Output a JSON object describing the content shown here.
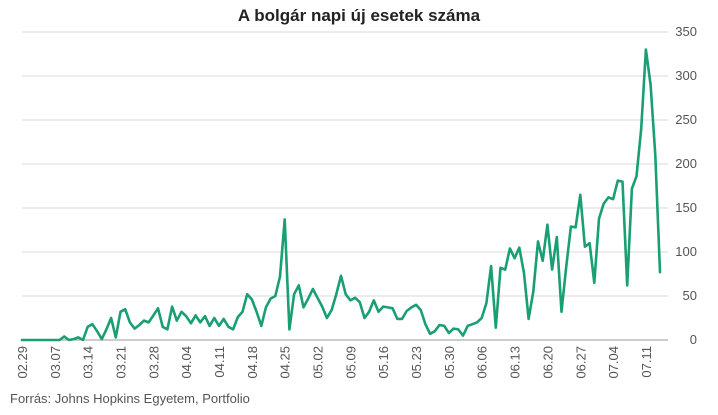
{
  "colors": {
    "line": "#1a9e74",
    "grid": "#d9d9d9",
    "text": "#555555"
  },
  "chart_data": {
    "type": "line",
    "title": "A bolgár napi új esetek száma",
    "source": "Forrás: Johns Hopkins Egyetem, Portfolio",
    "x_start": "02.29",
    "x_ticks": [
      "02.29",
      "03.07",
      "03.14",
      "03.21",
      "03.28",
      "04.04",
      "04.11",
      "04.18",
      "04.25",
      "05.02",
      "05.09",
      "05.16",
      "05.23",
      "05.30",
      "06.06",
      "06.13",
      "06.20",
      "06.27",
      "07.04",
      "07.11"
    ],
    "y_ticks": [
      0,
      50,
      100,
      150,
      200,
      250,
      300,
      350
    ],
    "ylim": [
      0,
      350
    ],
    "y_axis_position": "right",
    "grid": true,
    "series": [
      {
        "values": [
          0,
          0,
          0,
          0,
          0,
          0,
          0,
          0,
          0,
          4,
          0,
          1,
          3,
          0,
          15,
          18,
          10,
          1,
          12,
          25,
          3,
          32,
          35,
          20,
          13,
          17,
          22,
          20,
          28,
          36,
          15,
          12,
          38,
          22,
          32,
          27,
          19,
          28,
          20,
          27,
          16,
          25,
          16,
          24,
          15,
          12,
          26,
          32,
          52,
          46,
          32,
          16,
          37,
          47,
          50,
          72,
          137,
          12,
          52,
          62,
          37,
          47,
          58,
          48,
          38,
          25,
          34,
          52,
          73,
          52,
          45,
          48,
          43,
          25,
          32,
          45,
          32,
          38,
          37,
          36,
          24,
          24,
          33,
          37,
          40,
          34,
          18,
          7,
          10,
          17,
          16,
          8,
          13,
          12,
          5,
          16,
          18,
          20,
          25,
          42,
          84,
          14,
          82,
          80,
          104,
          93,
          105,
          76,
          24,
          55,
          112,
          90,
          131,
          80,
          117,
          32,
          83,
          129,
          128,
          165,
          106,
          110,
          65,
          138,
          155,
          162,
          160,
          181,
          180,
          62,
          172,
          186,
          240,
          330,
          290,
          210,
          77
        ]
      }
    ]
  }
}
